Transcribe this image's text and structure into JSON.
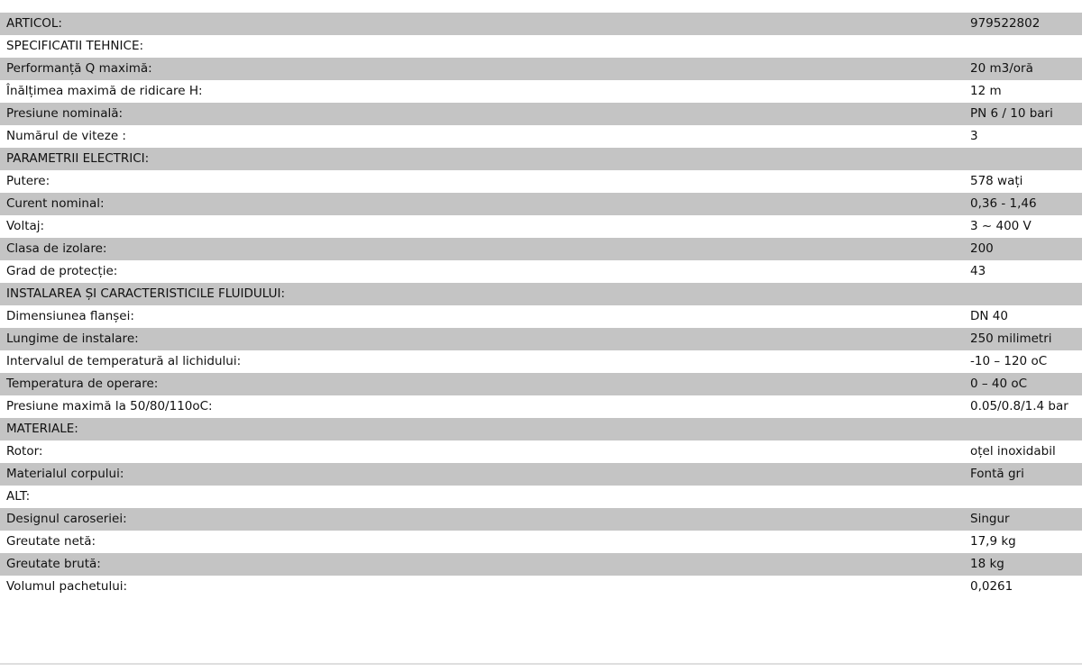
{
  "specs": [
    {
      "label": "ARTICOL:",
      "value": "979522802"
    },
    {
      "label": "SPECIFICATII TEHNICE:",
      "value": ""
    },
    {
      "label": "Performanță Q maximă:",
      "value": "20 m3/oră"
    },
    {
      "label": "Înălțimea maximă de ridicare H:",
      "value": "12 m"
    },
    {
      "label": "Presiune nominală:",
      "value": "PN 6 / 10 bari"
    },
    {
      "label": "Numărul de viteze :",
      "value": "3"
    },
    {
      "label": "PARAMETRII ELECTRICI:",
      "value": ""
    },
    {
      "label": "Putere:",
      "value": "578 wați"
    },
    {
      "label": "Curent nominal:",
      "value": "0,36 - 1,46"
    },
    {
      "label": "Voltaj:",
      "value": "3 ~ 400 V"
    },
    {
      "label": "Clasa de izolare:",
      "value": "200"
    },
    {
      "label": "Grad de protecție:",
      "value": "43"
    },
    {
      "label": "INSTALAREA ȘI CARACTERISTICILE FLUIDULUI:",
      "value": ""
    },
    {
      "label": "Dimensiunea flanșei:",
      "value": "DN 40"
    },
    {
      "label": "Lungime de instalare:",
      "value": "250 milimetri"
    },
    {
      "label": "Intervalul de temperatură al lichidului:",
      "value": "-10 – 120 oC"
    },
    {
      "label": "Temperatura de operare:",
      "value": "0 – 40 oC"
    },
    {
      "label": "Presiune maximă la 50/80/110oC:",
      "value": "0.05/0.8/1.4 bar"
    },
    {
      "label": "MATERIALE:",
      "value": ""
    },
    {
      "label": "Rotor:",
      "value": "oțel inoxidabil"
    },
    {
      "label": "Materialul corpului:",
      "value": "Fontă gri"
    },
    {
      "label": "ALT:",
      "value": ""
    },
    {
      "label": "Designul caroseriei:",
      "value": "Singur"
    },
    {
      "label": "Greutate netă:",
      "value": "17,9 kg"
    },
    {
      "label": "Greutate brută:",
      "value": "18 kg"
    },
    {
      "label": "Volumul pachetului:",
      "value": "0,0261"
    }
  ]
}
